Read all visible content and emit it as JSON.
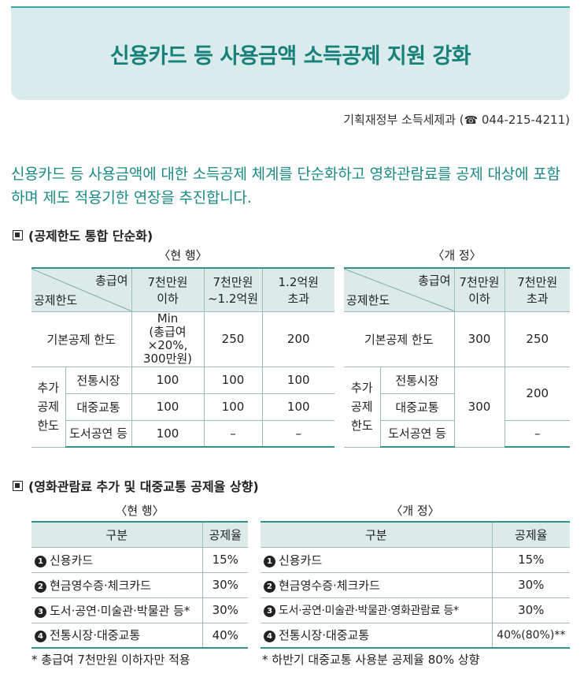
{
  "title": "신용카드 등 사용금액 소득공제 지원 강화",
  "dept": {
    "name": "기획재정부 소득세제과 (",
    "phone": "044-215-4211)"
  },
  "lead": "신용카드 등 사용금액에 대한 소득공제 체계를 단순화하고 영화관람료를 공제 대상에 포함하며 제도 적용기한 연장을 추진합니다.",
  "section1": {
    "heading": "(공제한도 통합 단순화)",
    "current_caption": "〈현 행〉",
    "revised_caption": "〈개 정〉",
    "current": {
      "diag_top": "총급여",
      "diag_bottom": "공제한도",
      "columns": [
        "7천만원\n이하",
        "7천만원\n~1.2억원",
        "1.2억원\n초과"
      ],
      "basic_label": "기본공제 한도",
      "basic_values": [
        "Min\n(총급여×20%,\n300만원)",
        "250",
        "200"
      ],
      "extra_label": "추가\n공제\n한도",
      "extra_rows": [
        {
          "label": "전통시장",
          "values": [
            "100",
            "100",
            "100"
          ]
        },
        {
          "label": "대중교통",
          "values": [
            "100",
            "100",
            "100"
          ]
        },
        {
          "label": "도서공연 등",
          "values": [
            "100",
            "–",
            "–"
          ]
        }
      ]
    },
    "revised": {
      "diag_top": "총급여",
      "diag_bottom": "공제한도",
      "columns": [
        "7천만원\n이하",
        "7천만원\n초과"
      ],
      "basic_label": "기본공제 한도",
      "basic_values": [
        "300",
        "250"
      ],
      "extra_label": "추가\n공제\n한도",
      "extra_rows": [
        {
          "label": "전통시장"
        },
        {
          "label": "대중교통"
        },
        {
          "label": "도서공연 등"
        }
      ],
      "extra_merged_low": "300",
      "extra_merged_high": "200",
      "extra_high_last": "–"
    }
  },
  "section2": {
    "heading": "(영화관람료 추가 및 대중교통 공제율 상향)",
    "current_caption": "〈현 행〉",
    "revised_caption": "〈개 정〉",
    "current": {
      "col_category": "구분",
      "col_rate": "공제율",
      "rows": [
        {
          "num": "1",
          "label": "신용카드",
          "rate": "15%"
        },
        {
          "num": "2",
          "label": "현금영수증·체크카드",
          "rate": "30%"
        },
        {
          "num": "3",
          "label": "도서·공연·미술관·박물관 등*",
          "rate": "30%"
        },
        {
          "num": "4",
          "label": "전통시장·대중교통",
          "rate": "40%"
        }
      ],
      "note": "* 총급여 7천만원 이하자만 적용"
    },
    "revised": {
      "col_category": "구분",
      "col_rate": "공제율",
      "rows": [
        {
          "num": "1",
          "label": "신용카드",
          "rate": "15%"
        },
        {
          "num": "2",
          "label": "현금영수증·체크카드",
          "rate": "30%"
        },
        {
          "num": "3",
          "label": "도서·공연·미술관·박물관·영화관람료 등*",
          "rate": "30%"
        },
        {
          "num": "4",
          "label": "전통시장·대중교통",
          "rate": "40%(80%)**"
        }
      ],
      "note": "* 하반기 대중교통 사용분 공제율 80% 상향"
    }
  }
}
